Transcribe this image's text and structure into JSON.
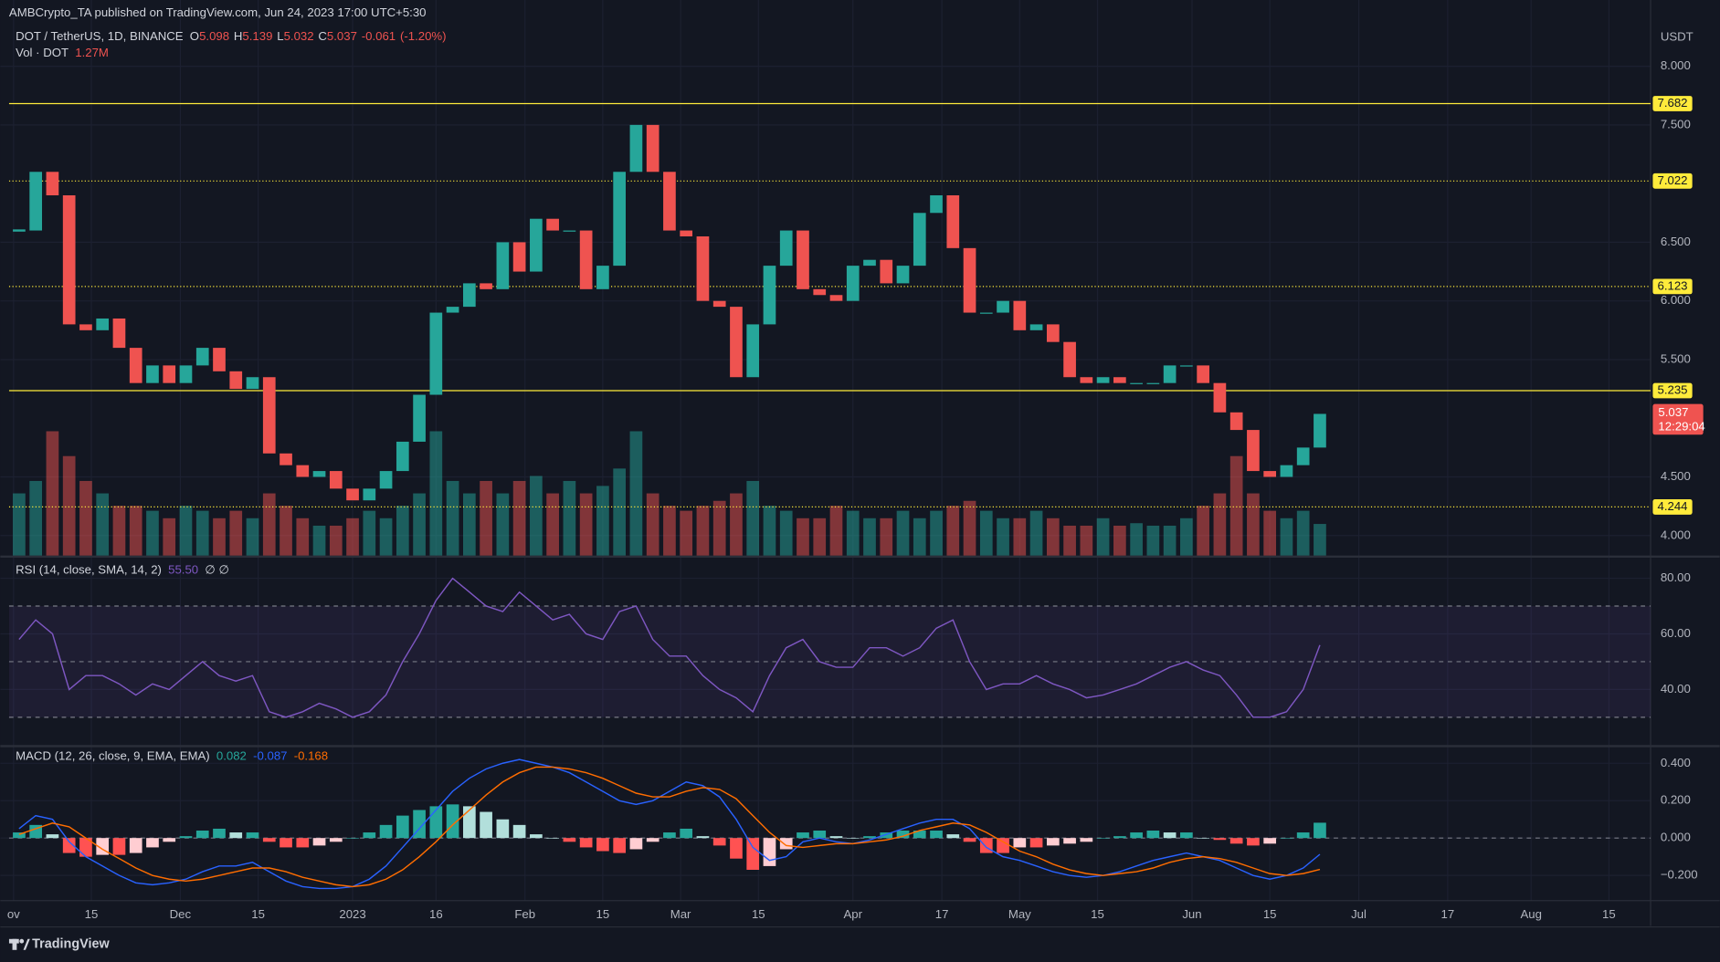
{
  "header": {
    "publisher": "AMBCrypto_TA published on TradingView.com, Jun 24, 2023 17:00 UTC+5:30",
    "ohlc": [
      {
        "label": "O",
        "value": 5.098
      },
      {
        "label": "H",
        "value": 5.139
      },
      {
        "label": "L",
        "value": 5.032
      },
      {
        "label": "C",
        "value": 5.037
      }
    ],
    "change": -0.061,
    "change_pct": "(-1.20%)",
    "footer": "TradingView"
  },
  "chart_data": {
    "type": "candlestick",
    "title": "DOT / TetherUS, 1D, BINANCE",
    "xlim": [
      -1.38,
      295.5
    ],
    "xticks": [
      {
        "value": 1,
        "label": "ov"
      },
      {
        "value": 15,
        "label": "15"
      },
      {
        "value": 31,
        "label": "Dec"
      },
      {
        "value": 45,
        "label": "15"
      },
      {
        "value": 62,
        "label": "2023"
      },
      {
        "value": 77,
        "label": "16"
      },
      {
        "value": 93,
        "label": "Feb"
      },
      {
        "value": 107,
        "label": "15"
      },
      {
        "value": 121,
        "label": "Mar"
      },
      {
        "value": 135,
        "label": "15"
      },
      {
        "value": 152,
        "label": "Apr"
      },
      {
        "value": 168,
        "label": "17"
      },
      {
        "value": 182,
        "label": "May"
      },
      {
        "value": 196,
        "label": "15"
      },
      {
        "value": 213,
        "label": "Jun"
      },
      {
        "value": 227,
        "label": "15"
      },
      {
        "value": 243,
        "label": "Jul"
      },
      {
        "value": 259,
        "label": "17"
      },
      {
        "value": 274,
        "label": "Aug"
      },
      {
        "value": 288,
        "label": "15"
      }
    ],
    "x": [
      2,
      5,
      8,
      11,
      14,
      17,
      20,
      23,
      26,
      29,
      32,
      35,
      38,
      41,
      44,
      47,
      50,
      53,
      56,
      59,
      62,
      65,
      68,
      71,
      74,
      77,
      80,
      83,
      86,
      89,
      92,
      95,
      98,
      101,
      104,
      107,
      110,
      113,
      116,
      119,
      122,
      125,
      128,
      131,
      134,
      137,
      140,
      143,
      146,
      149,
      152,
      155,
      158,
      161,
      164,
      167,
      170,
      173,
      176,
      179,
      182,
      185,
      188,
      191,
      194,
      197,
      200,
      203,
      206,
      209,
      212,
      215,
      218,
      221,
      224,
      227,
      230,
      233,
      236
    ],
    "grid": true,
    "price": {
      "unit": "USDT",
      "ylim": [
        3.83,
        8.49
      ],
      "up_color": "#26a69a",
      "down_color": "#ef5350",
      "yticks": [
        {
          "value": 4,
          "label": "4.000"
        },
        {
          "value": 4.5,
          "label": "4.500"
        },
        {
          "value": 5.5,
          "label": "5.500"
        },
        {
          "value": 6,
          "label": "6.000"
        },
        {
          "value": 6.5,
          "label": "6.500"
        },
        {
          "value": 7.5,
          "label": "7.500"
        },
        {
          "value": 8,
          "label": "8.000"
        }
      ],
      "close": [
        6.6,
        7.1,
        6.9,
        5.8,
        5.75,
        5.85,
        5.6,
        5.3,
        5.45,
        5.3,
        5.45,
        5.6,
        5.4,
        5.25,
        5.35,
        4.7,
        4.6,
        4.5,
        4.55,
        4.4,
        4.3,
        4.4,
        4.55,
        4.8,
        5.2,
        5.9,
        5.95,
        6.15,
        6.1,
        6.5,
        6.25,
        6.7,
        6.6,
        6.6,
        6.1,
        6.3,
        7.1,
        7.5,
        7.1,
        6.6,
        6.55,
        6.0,
        5.95,
        5.35,
        5.8,
        6.3,
        6.6,
        6.1,
        6.05,
        6.0,
        6.3,
        6.35,
        6.15,
        6.3,
        6.75,
        6.9,
        6.45,
        5.9,
        5.9,
        6.0,
        5.75,
        5.8,
        5.65,
        5.35,
        5.3,
        5.35,
        5.3,
        5.3,
        5.3,
        5.45,
        5.45,
        5.3,
        5.05,
        4.9,
        4.55,
        4.5,
        4.6,
        4.75,
        5.037
      ],
      "levels": [
        {
          "value": 7.682,
          "style": "solid"
        },
        {
          "value": 7.022,
          "style": "dotted"
        },
        {
          "value": 6.123,
          "style": "dotted"
        },
        {
          "value": 5.235,
          "style": "solid"
        },
        {
          "value": 4.244,
          "style": "dotted"
        }
      ],
      "level_color": "#ffeb3b",
      "countdown": "12:29:04"
    },
    "volume": {
      "name": "Vol · DOT",
      "last": "1.27M",
      "ylim": [
        0,
        22
      ],
      "values": [
        2.5,
        3,
        5,
        4,
        3,
        2.5,
        2,
        2,
        1.8,
        1.5,
        2,
        1.8,
        1.5,
        1.8,
        1.5,
        2.5,
        2,
        1.5,
        1.2,
        1.2,
        1.5,
        1.8,
        1.5,
        2,
        2.5,
        5,
        3,
        2.5,
        3,
        2.5,
        3,
        3.2,
        2.5,
        3,
        2.5,
        2.8,
        3.5,
        5,
        2.5,
        2,
        1.8,
        2,
        2.2,
        2.5,
        3,
        2,
        1.8,
        1.5,
        1.5,
        2,
        1.8,
        1.5,
        1.5,
        1.8,
        1.5,
        1.8,
        2,
        2.2,
        1.8,
        1.5,
        1.5,
        1.8,
        1.5,
        1.2,
        1.2,
        1.5,
        1.2,
        1.3,
        1.2,
        1.2,
        1.5,
        2,
        2.5,
        4,
        2.5,
        1.8,
        1.5,
        1.8,
        1.27
      ]
    },
    "rsi": {
      "title": "RSI (14, close, SMA, 14, 2)",
      "value_label": "55.50",
      "extra": "∅ ∅",
      "color": "#7e57c2",
      "ylim": [
        20,
        87
      ],
      "yticks": [
        {
          "value": 40,
          "label": "40.00"
        },
        {
          "value": 60,
          "label": "60.00"
        },
        {
          "value": 80,
          "label": "80.00"
        }
      ],
      "bands": [
        70,
        50,
        30
      ],
      "values": [
        58,
        65,
        60,
        40,
        45,
        45,
        42,
        38,
        42,
        40,
        45,
        50,
        45,
        43,
        45,
        32,
        30,
        32,
        35,
        33,
        30,
        32,
        38,
        50,
        60,
        72,
        80,
        75,
        70,
        68,
        75,
        70,
        65,
        67,
        60,
        58,
        68,
        70,
        58,
        52,
        52,
        45,
        40,
        37,
        32,
        45,
        55,
        58,
        50,
        48,
        48,
        55,
        55,
        52,
        55,
        62,
        65,
        50,
        40,
        42,
        42,
        45,
        42,
        40,
        37,
        38,
        40,
        42,
        45,
        48,
        50,
        47,
        45,
        38,
        30,
        30,
        32,
        40,
        56
      ]
    },
    "macd": {
      "title": "MACD (12, 26, close, 9, EMA, EMA)",
      "ylim": [
        -0.335,
        0.48
      ],
      "yticks": [
        {
          "value": -0.2,
          "label": "−0.200"
        },
        {
          "value": 0,
          "label": "0.000"
        },
        {
          "value": 0.2,
          "label": "0.200"
        },
        {
          "value": 0.4,
          "label": "0.400"
        }
      ],
      "last": [
        {
          "value": 0.082,
          "color": "#26a69a"
        },
        {
          "value": -0.087,
          "color": "#2962ff"
        },
        {
          "value": -0.168,
          "color": "#ff6d00"
        }
      ],
      "macd_color": "#2962ff",
      "signal_color": "#ff6d00",
      "hist_colors": [
        "#26a69a",
        "#b2dfdb",
        "#ffcdd2",
        "#ff5252"
      ],
      "macd": [
        0.05,
        0.12,
        0.1,
        -0.02,
        -0.1,
        -0.15,
        -0.2,
        -0.24,
        -0.25,
        -0.24,
        -0.22,
        -0.18,
        -0.15,
        -0.15,
        -0.13,
        -0.18,
        -0.23,
        -0.26,
        -0.27,
        -0.27,
        -0.26,
        -0.22,
        -0.15,
        -0.05,
        0.05,
        0.15,
        0.25,
        0.32,
        0.37,
        0.4,
        0.42,
        0.4,
        0.38,
        0.35,
        0.3,
        0.25,
        0.2,
        0.18,
        0.2,
        0.25,
        0.3,
        0.28,
        0.22,
        0.1,
        -0.05,
        -0.12,
        -0.1,
        -0.02,
        0.0,
        -0.02,
        -0.03,
        -0.01,
        0.02,
        0.05,
        0.08,
        0.1,
        0.1,
        0.05,
        -0.05,
        -0.1,
        -0.12,
        -0.15,
        -0.18,
        -0.2,
        -0.21,
        -0.2,
        -0.18,
        -0.15,
        -0.12,
        -0.1,
        -0.08,
        -0.1,
        -0.12,
        -0.16,
        -0.2,
        -0.22,
        -0.2,
        -0.16,
        -0.087
      ],
      "signal": [
        0.02,
        0.05,
        0.08,
        0.06,
        0.0,
        -0.06,
        -0.11,
        -0.16,
        -0.2,
        -0.22,
        -0.23,
        -0.22,
        -0.2,
        -0.18,
        -0.16,
        -0.16,
        -0.18,
        -0.21,
        -0.23,
        -0.25,
        -0.26,
        -0.25,
        -0.22,
        -0.17,
        -0.1,
        -0.02,
        0.07,
        0.15,
        0.23,
        0.3,
        0.35,
        0.38,
        0.38,
        0.37,
        0.35,
        0.32,
        0.28,
        0.24,
        0.22,
        0.22,
        0.25,
        0.27,
        0.26,
        0.21,
        0.12,
        0.03,
        -0.04,
        -0.05,
        -0.04,
        -0.03,
        -0.03,
        -0.02,
        -0.01,
        0.01,
        0.04,
        0.06,
        0.08,
        0.07,
        0.03,
        -0.02,
        -0.07,
        -0.1,
        -0.14,
        -0.17,
        -0.19,
        -0.2,
        -0.19,
        -0.18,
        -0.16,
        -0.13,
        -0.11,
        -0.1,
        -0.11,
        -0.13,
        -0.16,
        -0.19,
        -0.2,
        -0.19,
        -0.168
      ],
      "hist": [
        0.03,
        0.07,
        0.02,
        -0.08,
        -0.1,
        -0.09,
        -0.09,
        -0.08,
        -0.05,
        -0.02,
        0.01,
        0.04,
        0.05,
        0.03,
        0.03,
        -0.02,
        -0.05,
        -0.05,
        -0.04,
        -0.02,
        0.0,
        0.03,
        0.07,
        0.12,
        0.15,
        0.17,
        0.18,
        0.17,
        0.14,
        0.1,
        0.07,
        0.02,
        0.0,
        -0.02,
        -0.05,
        -0.07,
        -0.08,
        -0.06,
        -0.02,
        0.03,
        0.05,
        0.01,
        -0.04,
        -0.11,
        -0.17,
        -0.15,
        -0.06,
        0.03,
        0.04,
        0.01,
        0.0,
        0.01,
        0.03,
        0.04,
        0.04,
        0.04,
        0.02,
        -0.02,
        -0.08,
        -0.08,
        -0.05,
        -0.05,
        -0.04,
        -0.03,
        -0.02,
        0.0,
        0.01,
        0.03,
        0.04,
        0.03,
        0.03,
        0.0,
        -0.01,
        -0.03,
        -0.04,
        -0.03,
        0.0,
        0.03,
        0.082
      ]
    }
  }
}
